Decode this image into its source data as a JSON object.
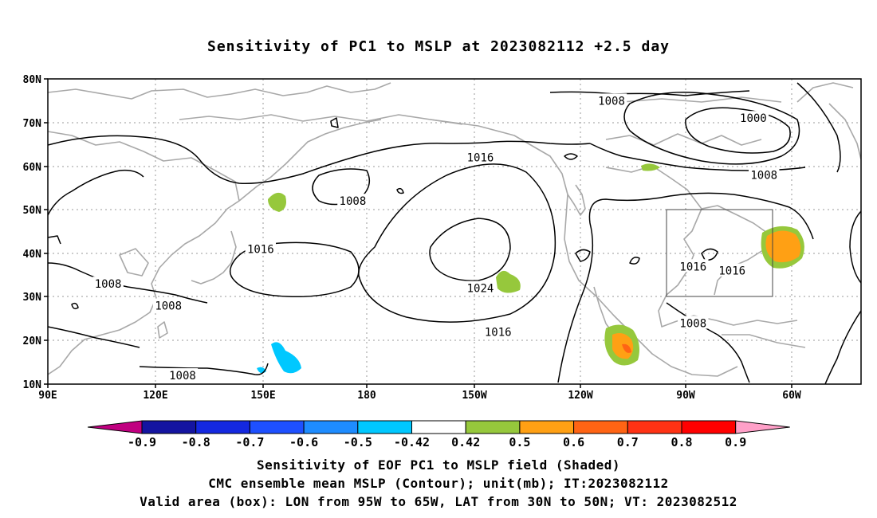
{
  "title": "Sensitivity of PC1 to MSLP at 2023082112 +2.5 day",
  "lat_ticks": [
    "80N",
    "70N",
    "60N",
    "50N",
    "40N",
    "30N",
    "20N",
    "10N"
  ],
  "lon_ticks": [
    "90E",
    "120E",
    "150E",
    "180",
    "150W",
    "120W",
    "90W",
    "60W"
  ],
  "contour_labels": [
    {
      "id": "c1008-a",
      "text": "1008",
      "lon": -111,
      "lat": 75
    },
    {
      "id": "c1000",
      "text": "1000",
      "lon": -71,
      "lat": 71
    },
    {
      "id": "c1008-b",
      "text": "1008",
      "lon": -68,
      "lat": 58
    },
    {
      "id": "c1016-a",
      "text": "1016",
      "lon": -148,
      "lat": 62
    },
    {
      "id": "c1008-c",
      "text": "1008",
      "lon": 176,
      "lat": 52
    },
    {
      "id": "c1016-b",
      "text": "1016",
      "lon": 150,
      "lat": 41
    },
    {
      "id": "c1024",
      "text": "1024",
      "lon": -148,
      "lat": 32
    },
    {
      "id": "c1016-c",
      "text": "1016",
      "lon": -143,
      "lat": 22
    },
    {
      "id": "c1008-d",
      "text": "1008",
      "lon": 107,
      "lat": 33
    },
    {
      "id": "c1008-e",
      "text": "1008",
      "lon": 124,
      "lat": 28
    },
    {
      "id": "c1016-d",
      "text": "1016",
      "lon": -88,
      "lat": 37
    },
    {
      "id": "c1016-e",
      "text": "1016",
      "lon": -77,
      "lat": 36
    },
    {
      "id": "c1008-f",
      "text": "1008",
      "lon": -88,
      "lat": 24
    },
    {
      "id": "c1008-g",
      "text": "1008",
      "lon": 128,
      "lat": 12
    }
  ],
  "colorbar": {
    "labels": [
      "-0.9",
      "-0.8",
      "-0.7",
      "-0.6",
      "-0.5",
      "-0.42",
      "0.42",
      "0.5",
      "0.6",
      "0.7",
      "0.8",
      "0.9"
    ],
    "colors": [
      "#c00080",
      "#1414a0",
      "#1428e0",
      "#1e50ff",
      "#1e8cff",
      "#00c8ff",
      "#ffffff",
      "#96c83c",
      "#ffa014",
      "#ff6414",
      "#ff3214",
      "#ff0000",
      "#ffa0c8"
    ]
  },
  "footer": {
    "line1": "Sensitivity of EOF PC1 to MSLP field (Shaded)",
    "line2": "CMC ensemble mean MSLP (Contour); unit(mb); IT:2023082112",
    "line3": "Valid area (box): LON from 95W to 65W, LAT from 30N to 50N; VT: 2023082512"
  },
  "valid_box": {
    "lon_min": -95,
    "lon_max": -65,
    "lat_min": 30,
    "lat_max": 50
  }
}
